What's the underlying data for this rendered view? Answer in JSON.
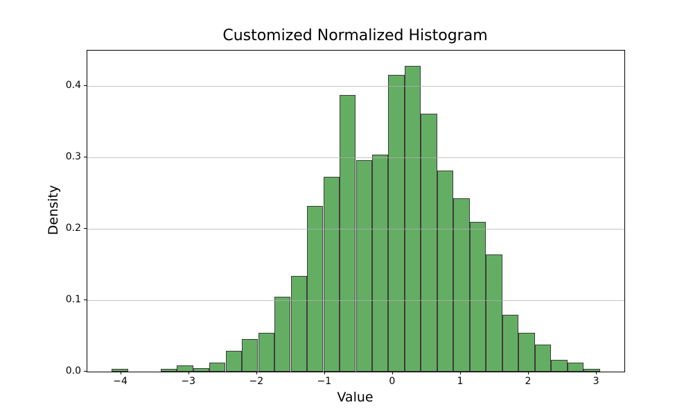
{
  "figure": {
    "title": "Customized Normalized Histogram",
    "xlabel": "Value",
    "ylabel": "Density"
  },
  "chart_data": {
    "type": "bar",
    "subtype": "normalized-histogram",
    "title": "Customized Normalized Histogram",
    "xlabel": "Value",
    "ylabel": "Density",
    "grid": "horizontal-only, drawn over bars, semi-transparent",
    "legend": "none",
    "bar_fill_color": "#64ae64",
    "bar_edge_color": "#3c3c3c",
    "grid_color": "#b0b0b0",
    "xlim": [
      -4.496,
      3.407
    ],
    "ylim": [
      0,
      0.4494
    ],
    "xticks": {
      "values": [
        -4,
        -3,
        -2,
        -1,
        0,
        1,
        2,
        3
      ],
      "labels": [
        "−4",
        "−3",
        "−2",
        "−1",
        "0",
        "1",
        "2",
        "3"
      ]
    },
    "yticks": {
      "values": [
        0.0,
        0.1,
        0.2,
        0.3,
        0.4
      ],
      "labels": [
        "0.0",
        "0.1",
        "0.2",
        "0.3",
        "0.4"
      ]
    },
    "bin_edges": [
      -4.137,
      -3.898,
      -3.658,
      -3.419,
      -3.179,
      -2.94,
      -2.7,
      -2.461,
      -2.221,
      -1.982,
      -1.742,
      -1.503,
      -1.263,
      -1.024,
      -0.784,
      -0.545,
      -0.305,
      -0.066,
      0.174,
      0.413,
      0.653,
      0.892,
      1.132,
      1.371,
      1.611,
      1.85,
      2.09,
      2.329,
      2.569,
      2.808,
      3.048
    ],
    "densities": [
      0.0042,
      0,
      0,
      0.0042,
      0.0092,
      0.0046,
      0.0125,
      0.0292,
      0.046,
      0.0543,
      0.1045,
      0.134,
      0.232,
      0.273,
      0.387,
      0.296,
      0.304,
      0.4155,
      0.428,
      0.361,
      0.282,
      0.243,
      0.21,
      0.164,
      0.0794,
      0.0545,
      0.0376,
      0.0165,
      0.0128,
      0.0042
    ]
  }
}
